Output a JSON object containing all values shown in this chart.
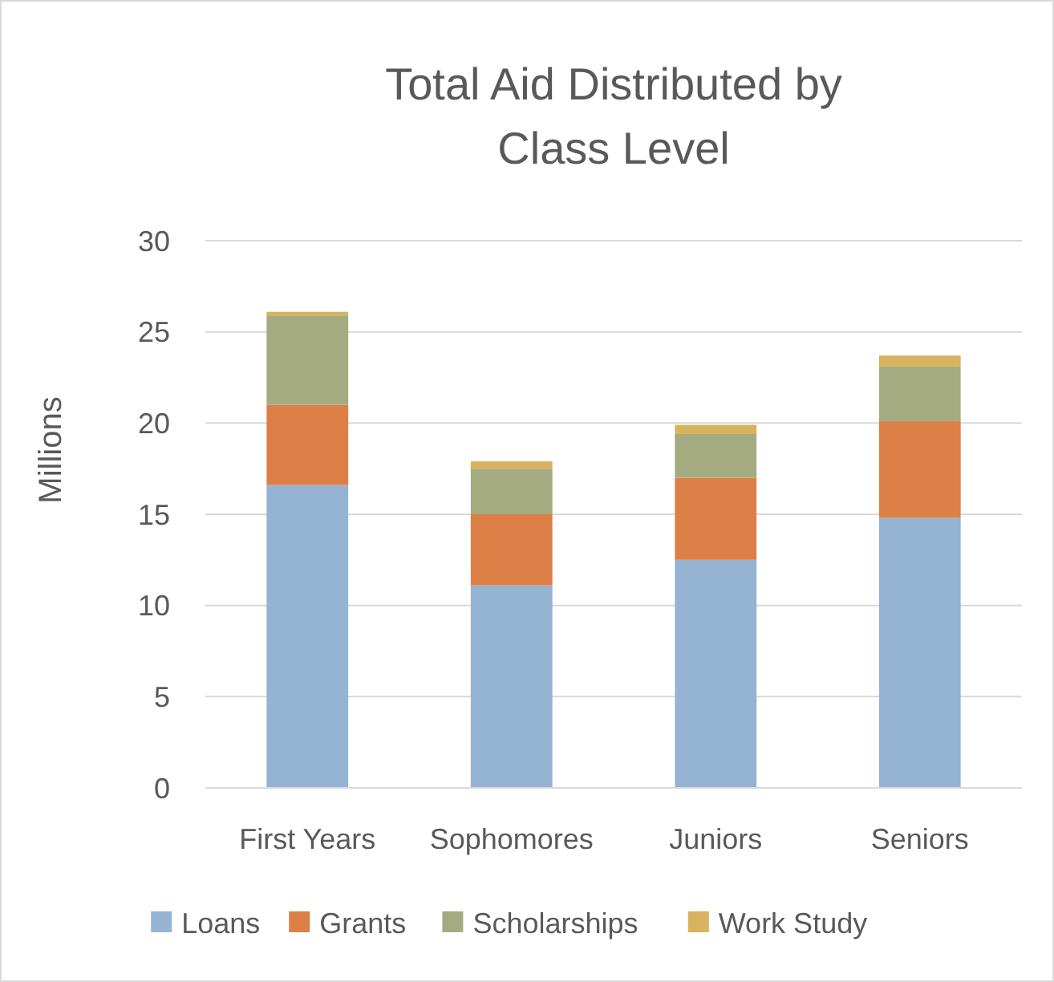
{
  "chart_data": {
    "type": "bar",
    "title": "Total Aid Distributed by Class Level",
    "ylabel": "Millions",
    "stacked": true,
    "categories": [
      "First Years",
      "Sophomores",
      "Juniors",
      "Seniors"
    ],
    "series": [
      {
        "name": "Loans",
        "color": "#95b3d3",
        "values": [
          16.6,
          11.1,
          12.5,
          14.8
        ]
      },
      {
        "name": "Grants",
        "color": "#dd8047",
        "values": [
          4.4,
          3.9,
          4.5,
          5.3
        ]
      },
      {
        "name": "Scholarships",
        "color": "#a5ab81",
        "values": [
          4.9,
          2.5,
          2.4,
          3.0
        ]
      },
      {
        "name": "Work Study",
        "color": "#d8b25c",
        "values": [
          0.2,
          0.4,
          0.5,
          0.6
        ]
      }
    ],
    "ylim": [
      0,
      30
    ],
    "yticks": [
      0,
      5,
      10,
      15,
      20,
      25,
      30
    ],
    "grid": "y",
    "legend": "bottom"
  }
}
